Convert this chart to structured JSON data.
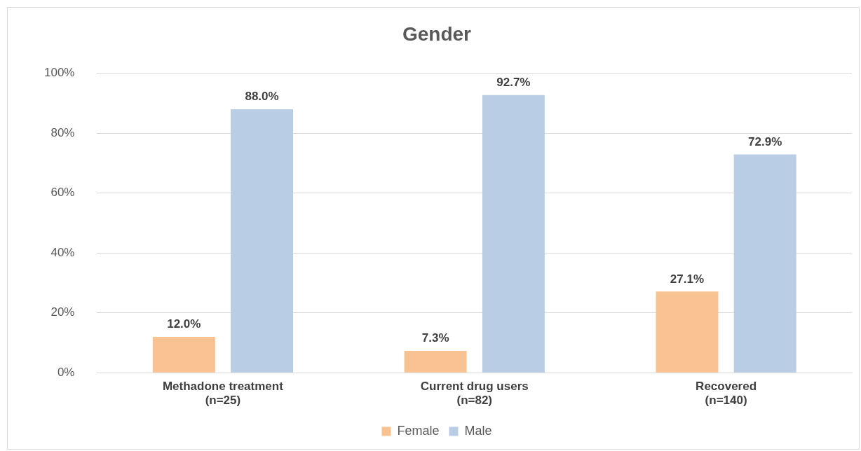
{
  "chart_data": {
    "type": "bar",
    "title": "Gender",
    "categories": [
      "Methadone treatment\n(n=25)",
      "Current drug users\n(n=82)",
      "Recovered\n(n=140)"
    ],
    "series": [
      {
        "name": "Female",
        "color": "#f8c292",
        "values": [
          12.0,
          7.3,
          27.1
        ],
        "value_labels": [
          "12.0%",
          "7.3%",
          "27.1%"
        ]
      },
      {
        "name": "Male",
        "color": "#b9cde5",
        "values": [
          88.0,
          92.7,
          72.9
        ],
        "value_labels": [
          "88.0%",
          "92.7%",
          "72.9%"
        ]
      }
    ],
    "ylim": [
      0,
      100
    ],
    "yticks": [
      {
        "value": 0,
        "label": "0%"
      },
      {
        "value": 20,
        "label": "20%"
      },
      {
        "value": 40,
        "label": "40%"
      },
      {
        "value": 60,
        "label": "60%"
      },
      {
        "value": 80,
        "label": "80%"
      },
      {
        "value": 100,
        "label": "100%"
      }
    ],
    "grid": "y",
    "legend": "bottom"
  }
}
